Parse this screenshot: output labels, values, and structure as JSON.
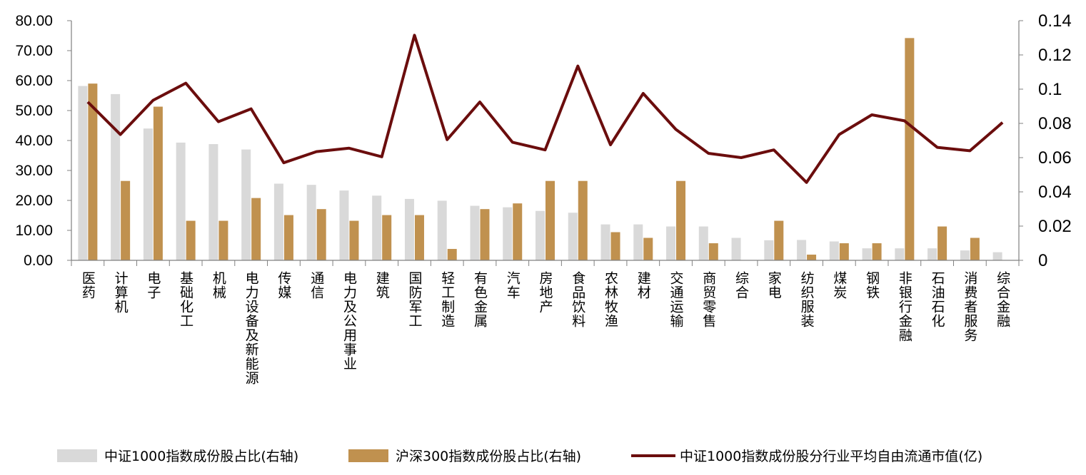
{
  "chart_data": {
    "type": "bar",
    "categories": [
      "医药",
      "计算机",
      "电子",
      "基础化工",
      "机械",
      "电力设备及新能源",
      "传媒",
      "通信",
      "电力及公用事业",
      "建筑",
      "国防军工",
      "轻工制造",
      "有色金属",
      "汽车",
      "房地产",
      "食品饮料",
      "农林牧渔",
      "建材",
      "交通运输",
      "商贸零售",
      "综合",
      "家电",
      "纺织服装",
      "煤炭",
      "钢铁",
      "非银行金融",
      "石油石化",
      "消费者服务",
      "综合金融"
    ],
    "series": [
      {
        "name": "中证1000指数成份股占比(右轴)",
        "kind": "bar",
        "color": "#d9d9d9",
        "values": [
          58.2,
          55.5,
          44.0,
          39.3,
          38.8,
          37.0,
          25.6,
          25.2,
          23.3,
          21.6,
          20.5,
          19.9,
          18.2,
          17.7,
          16.5,
          15.9,
          12.0,
          12.0,
          11.3,
          11.3,
          7.5,
          6.7,
          6.8,
          6.3,
          4.0,
          4.0,
          4.0,
          3.3,
          2.7
        ]
      },
      {
        "name": "沪深300指数成份股占比(右轴)",
        "kind": "bar",
        "color": "#c0914f",
        "values": [
          59.0,
          26.5,
          51.3,
          13.2,
          13.2,
          20.8,
          15.1,
          17.1,
          13.2,
          15.1,
          15.1,
          3.8,
          17.1,
          19.0,
          26.5,
          26.5,
          9.4,
          7.5,
          26.5,
          5.7,
          0,
          13.2,
          1.9,
          5.7,
          5.7,
          74.2,
          11.3,
          7.5,
          0
        ]
      },
      {
        "name": "中证1000指数成份股分行业平均自由流通市值(亿)",
        "kind": "line",
        "color": "#6b0d0d",
        "values": [
          0.0925,
          0.0735,
          0.0935,
          0.1035,
          0.081,
          0.0885,
          0.057,
          0.0635,
          0.0655,
          0.0605,
          0.1315,
          0.0705,
          0.0925,
          0.069,
          0.0645,
          0.1135,
          0.0675,
          0.0975,
          0.0765,
          0.0625,
          0.06,
          0.0645,
          0.0455,
          0.0735,
          0.085,
          0.0815,
          0.066,
          0.064,
          0.0805
        ]
      }
    ],
    "left_axis": {
      "min": 0,
      "max": 80,
      "step": 10,
      "tick_labels": [
        "0.00",
        "10.00",
        "20.00",
        "30.00",
        "40.00",
        "50.00",
        "60.00",
        "70.00",
        "80.00"
      ]
    },
    "right_axis": {
      "min": 0,
      "max": 0.14,
      "step": 0.02,
      "tick_labels": [
        "0",
        "0.02",
        "0.04",
        "0.06",
        "0.08",
        "0.1",
        "0.12",
        "0.14"
      ]
    },
    "legend_position": "bottom",
    "grid": false
  }
}
